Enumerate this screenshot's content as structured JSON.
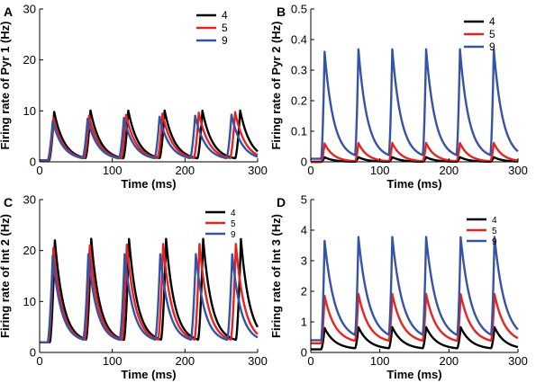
{
  "figure": {
    "series_colors": {
      "4": "#000000",
      "5": "#e8231f",
      "9": "#3653a6"
    }
  },
  "chart_data": [
    {
      "panel_label": "A",
      "type": "line",
      "xlabel": "Time (ms)",
      "ylabel": "Firing rate of Pyr 1 (Hz)",
      "xlim": [
        0,
        300
      ],
      "ylim": [
        0,
        30
      ],
      "xticks": [
        0,
        100,
        200,
        300
      ],
      "yticks": [
        0,
        10,
        20,
        30
      ],
      "xtick_labels": [
        "0",
        "100",
        "200",
        "300"
      ],
      "ytick_labels": [
        "0",
        "10",
        "20",
        "30"
      ],
      "legend_position": "top-right",
      "series": [
        {
          "name": "4",
          "color": "#000000",
          "baseline": 0.3,
          "peaks": [
            9.8,
            9.8,
            9.8,
            9.8,
            9.8,
            9.8
          ],
          "peak_times": [
            20,
            70,
            122,
            172,
            224,
            276
          ],
          "rise_ms": 7,
          "decay_tau_ms": 14
        },
        {
          "name": "5",
          "color": "#e8231f",
          "baseline": 0.3,
          "peaks": [
            8.6,
            8.8,
            9.0,
            9.2,
            9.4,
            9.5
          ],
          "peak_times": [
            19,
            68,
            119,
            169,
            219,
            269
          ],
          "rise_ms": 7,
          "decay_tau_ms": 14
        },
        {
          "name": "9",
          "color": "#3653a6",
          "baseline": 0.3,
          "peaks": [
            8.0,
            8.2,
            8.4,
            8.6,
            8.8,
            9.0
          ],
          "peak_times": [
            18,
            66,
            116,
            165,
            214,
            264
          ],
          "rise_ms": 7,
          "decay_tau_ms": 14
        }
      ]
    },
    {
      "panel_label": "B",
      "type": "line",
      "xlabel": "Time (ms)",
      "ylabel": "Firing rate of Pyr 2 (Hz)",
      "xlim": [
        0,
        300
      ],
      "ylim": [
        0,
        0.5
      ],
      "xticks": [
        0,
        100,
        200,
        300
      ],
      "yticks": [
        0,
        0.1,
        0.2,
        0.3,
        0.4,
        0.5
      ],
      "xtick_labels": [
        "0",
        "100",
        "200",
        "300"
      ],
      "ytick_labels": [
        "0",
        "0.1",
        "0.2",
        "0.3",
        "0.4",
        "0.5"
      ],
      "legend_position": "top-right",
      "series": [
        {
          "name": "4",
          "color": "#000000",
          "baseline": 0.0,
          "peaks": [
            0.015,
            0.015,
            0.015,
            0.015,
            0.015,
            0.015
          ],
          "peak_times": [
            20,
            69,
            118,
            167,
            216,
            265
          ],
          "rise_ms": 5,
          "decay_tau_ms": 13
        },
        {
          "name": "5",
          "color": "#e8231f",
          "baseline": 0.0,
          "peaks": [
            0.06,
            0.06,
            0.06,
            0.06,
            0.06,
            0.06
          ],
          "peak_times": [
            20,
            69,
            118,
            167,
            216,
            265
          ],
          "rise_ms": 5,
          "decay_tau_ms": 13
        },
        {
          "name": "9",
          "color": "#3653a6",
          "baseline": 0.01,
          "peaks": [
            0.36,
            0.36,
            0.36,
            0.36,
            0.36,
            0.36
          ],
          "peak_times": [
            20,
            69,
            118,
            167,
            216,
            265
          ],
          "rise_ms": 5,
          "decay_tau_ms": 13
        }
      ]
    },
    {
      "panel_label": "C",
      "type": "line",
      "xlabel": "Time (ms)",
      "ylabel": "Firing rate of Int 2 (Hz)",
      "xlim": [
        0,
        300
      ],
      "ylim": [
        0,
        30
      ],
      "xticks": [
        0,
        100,
        200,
        300
      ],
      "yticks": [
        0,
        10,
        20,
        30
      ],
      "xtick_labels": [
        "0",
        "100",
        "200",
        "300"
      ],
      "ytick_labels": [
        "0",
        "10",
        "20",
        "30"
      ],
      "legend_position": "top-right",
      "series": [
        {
          "name": "4",
          "color": "#000000",
          "baseline": 2.0,
          "peaks": [
            22,
            22,
            22,
            22,
            22,
            22
          ],
          "peak_times": [
            21,
            71,
            123,
            174,
            225,
            277
          ],
          "rise_ms": 7,
          "decay_tau_ms": 12
        },
        {
          "name": "5",
          "color": "#e8231f",
          "baseline": 2.0,
          "peaks": [
            20.5,
            20.7,
            20.9,
            21.0,
            21.0,
            21.0
          ],
          "peak_times": [
            19,
            69,
            120,
            170,
            220,
            270
          ],
          "rise_ms": 7,
          "decay_tau_ms": 12
        },
        {
          "name": "9",
          "color": "#3653a6",
          "baseline": 2.0,
          "peaks": [
            19,
            19,
            19,
            19,
            19,
            19
          ],
          "peak_times": [
            18,
            67,
            117,
            166,
            215,
            265
          ],
          "rise_ms": 7,
          "decay_tau_ms": 12
        }
      ]
    },
    {
      "panel_label": "D",
      "type": "line",
      "xlabel": "Time (ms)",
      "ylabel": "Firing rate of Int 3 (Hz)",
      "xlim": [
        0,
        300
      ],
      "ylim": [
        0,
        5
      ],
      "xticks": [
        0,
        100,
        200,
        300
      ],
      "yticks": [
        0,
        1,
        2,
        3,
        4,
        5
      ],
      "xtick_labels": [
        "0",
        "100",
        "200",
        "300"
      ],
      "ytick_labels": [
        "0",
        "1",
        "2",
        "3",
        "4",
        "5"
      ],
      "legend_position": "top-right",
      "series": [
        {
          "name": "4",
          "color": "#000000",
          "baseline": 0.1,
          "peaks": [
            0.8,
            0.8,
            0.8,
            0.8,
            0.8,
            0.8
          ],
          "peak_times": [
            20,
            69,
            118,
            167,
            217,
            266
          ],
          "rise_ms": 5,
          "decay_tau_ms": 15
        },
        {
          "name": "5",
          "color": "#e8231f",
          "baseline": 0.3,
          "peaks": [
            1.85,
            1.85,
            1.85,
            1.85,
            1.85,
            1.85
          ],
          "peak_times": [
            20,
            69,
            118,
            167,
            217,
            266
          ],
          "rise_ms": 5,
          "decay_tau_ms": 15
        },
        {
          "name": "9",
          "color": "#3653a6",
          "baseline": 0.4,
          "peaks": [
            3.65,
            3.65,
            3.65,
            3.65,
            3.65,
            3.65
          ],
          "peak_times": [
            20,
            69,
            118,
            167,
            217,
            266
          ],
          "rise_ms": 5,
          "decay_tau_ms": 15
        }
      ]
    }
  ]
}
